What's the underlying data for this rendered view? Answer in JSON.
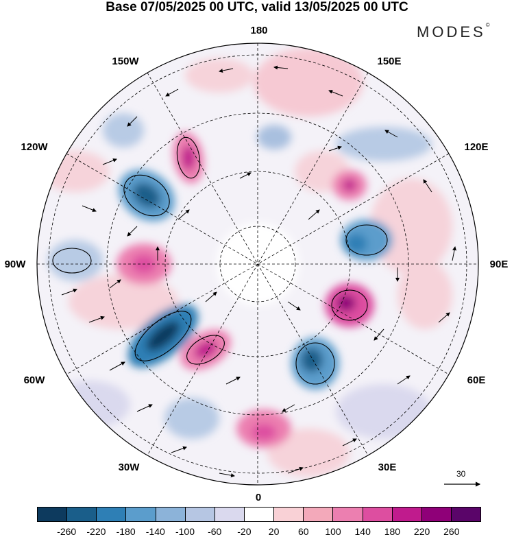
{
  "title": "Base 07/05/2025 00 UTC, valid 13/05/2025 00 UTC",
  "brand": {
    "name": "MODES",
    "mark": "©"
  },
  "map": {
    "projection": "north-polar-stereographic",
    "longitude_labels": {
      "top": "180",
      "top_left": "150W",
      "top_right": "150E",
      "upper_left": "120W",
      "upper_right": "120E",
      "left": "90W",
      "right": "90E",
      "lower_left": "60W",
      "lower_right": "60E",
      "bottom_left": "30W",
      "bottom_right": "30E",
      "bottom": "0"
    }
  },
  "vector_reference": {
    "value": "30"
  },
  "colorbar": {
    "colors": [
      "#0d3a5e",
      "#1a5e8a",
      "#2e7fb5",
      "#5b9dcc",
      "#8cb3d9",
      "#b6c6e3",
      "#dad9ee",
      "#ffffff",
      "#f9d1d6",
      "#f3a9ba",
      "#ec7fb0",
      "#dd4ea0",
      "#c01b8d",
      "#8f0078",
      "#5a0569"
    ],
    "tick_labels": [
      "-260",
      "-220",
      "-180",
      "-140",
      "-100",
      "-60",
      "-20",
      "20",
      "60",
      "100",
      "140",
      "180",
      "220",
      "260"
    ]
  }
}
